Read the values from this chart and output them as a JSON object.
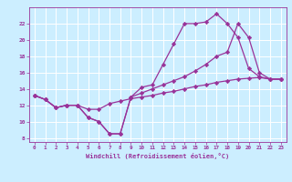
{
  "xlabel": "Windchill (Refroidissement éolien,°C)",
  "bg_color": "#cceeff",
  "grid_color": "#ffffff",
  "line_color": "#993399",
  "marker_color": "#993399",
  "axis_color": "#993399",
  "tick_color": "#993399",
  "xlim": [
    -0.5,
    23.5
  ],
  "ylim": [
    7.5,
    24.0
  ],
  "xticks": [
    0,
    1,
    2,
    3,
    4,
    5,
    6,
    7,
    8,
    9,
    10,
    11,
    12,
    13,
    14,
    15,
    16,
    17,
    18,
    19,
    20,
    21,
    22,
    23
  ],
  "yticks": [
    8,
    10,
    12,
    14,
    16,
    18,
    20,
    22
  ],
  "curve1_x": [
    0,
    1,
    2,
    3,
    4,
    5,
    6,
    7,
    8,
    9,
    10,
    11,
    12,
    13,
    14,
    15,
    16,
    17,
    18,
    19,
    20,
    21,
    22,
    23
  ],
  "curve1_y": [
    13.2,
    12.7,
    11.7,
    12.0,
    12.0,
    10.5,
    10.0,
    8.5,
    8.5,
    13.0,
    14.2,
    14.5,
    17.0,
    19.5,
    22.0,
    22.0,
    22.2,
    23.2,
    22.0,
    20.3,
    16.5,
    15.5,
    15.2,
    15.2
  ],
  "curve2_x": [
    0,
    1,
    2,
    3,
    4,
    5,
    6,
    7,
    8,
    9,
    10,
    11,
    12,
    13,
    14,
    15,
    16,
    17,
    18,
    19,
    20,
    21,
    22,
    23
  ],
  "curve2_y": [
    13.2,
    12.7,
    11.7,
    12.0,
    12.0,
    10.5,
    10.0,
    8.5,
    8.5,
    13.0,
    13.5,
    14.0,
    14.5,
    15.0,
    15.5,
    16.2,
    17.0,
    18.0,
    18.5,
    22.0,
    20.3,
    16.0,
    15.2,
    15.2
  ],
  "curve3_x": [
    0,
    1,
    2,
    3,
    4,
    5,
    6,
    7,
    8,
    9,
    10,
    11,
    12,
    13,
    14,
    15,
    16,
    17,
    18,
    19,
    20,
    21,
    22,
    23
  ],
  "curve3_y": [
    13.2,
    12.7,
    11.7,
    12.0,
    12.0,
    11.5,
    11.5,
    12.2,
    12.5,
    12.8,
    13.0,
    13.2,
    13.5,
    13.7,
    14.0,
    14.3,
    14.5,
    14.8,
    15.0,
    15.2,
    15.3,
    15.4,
    15.2,
    15.2
  ]
}
